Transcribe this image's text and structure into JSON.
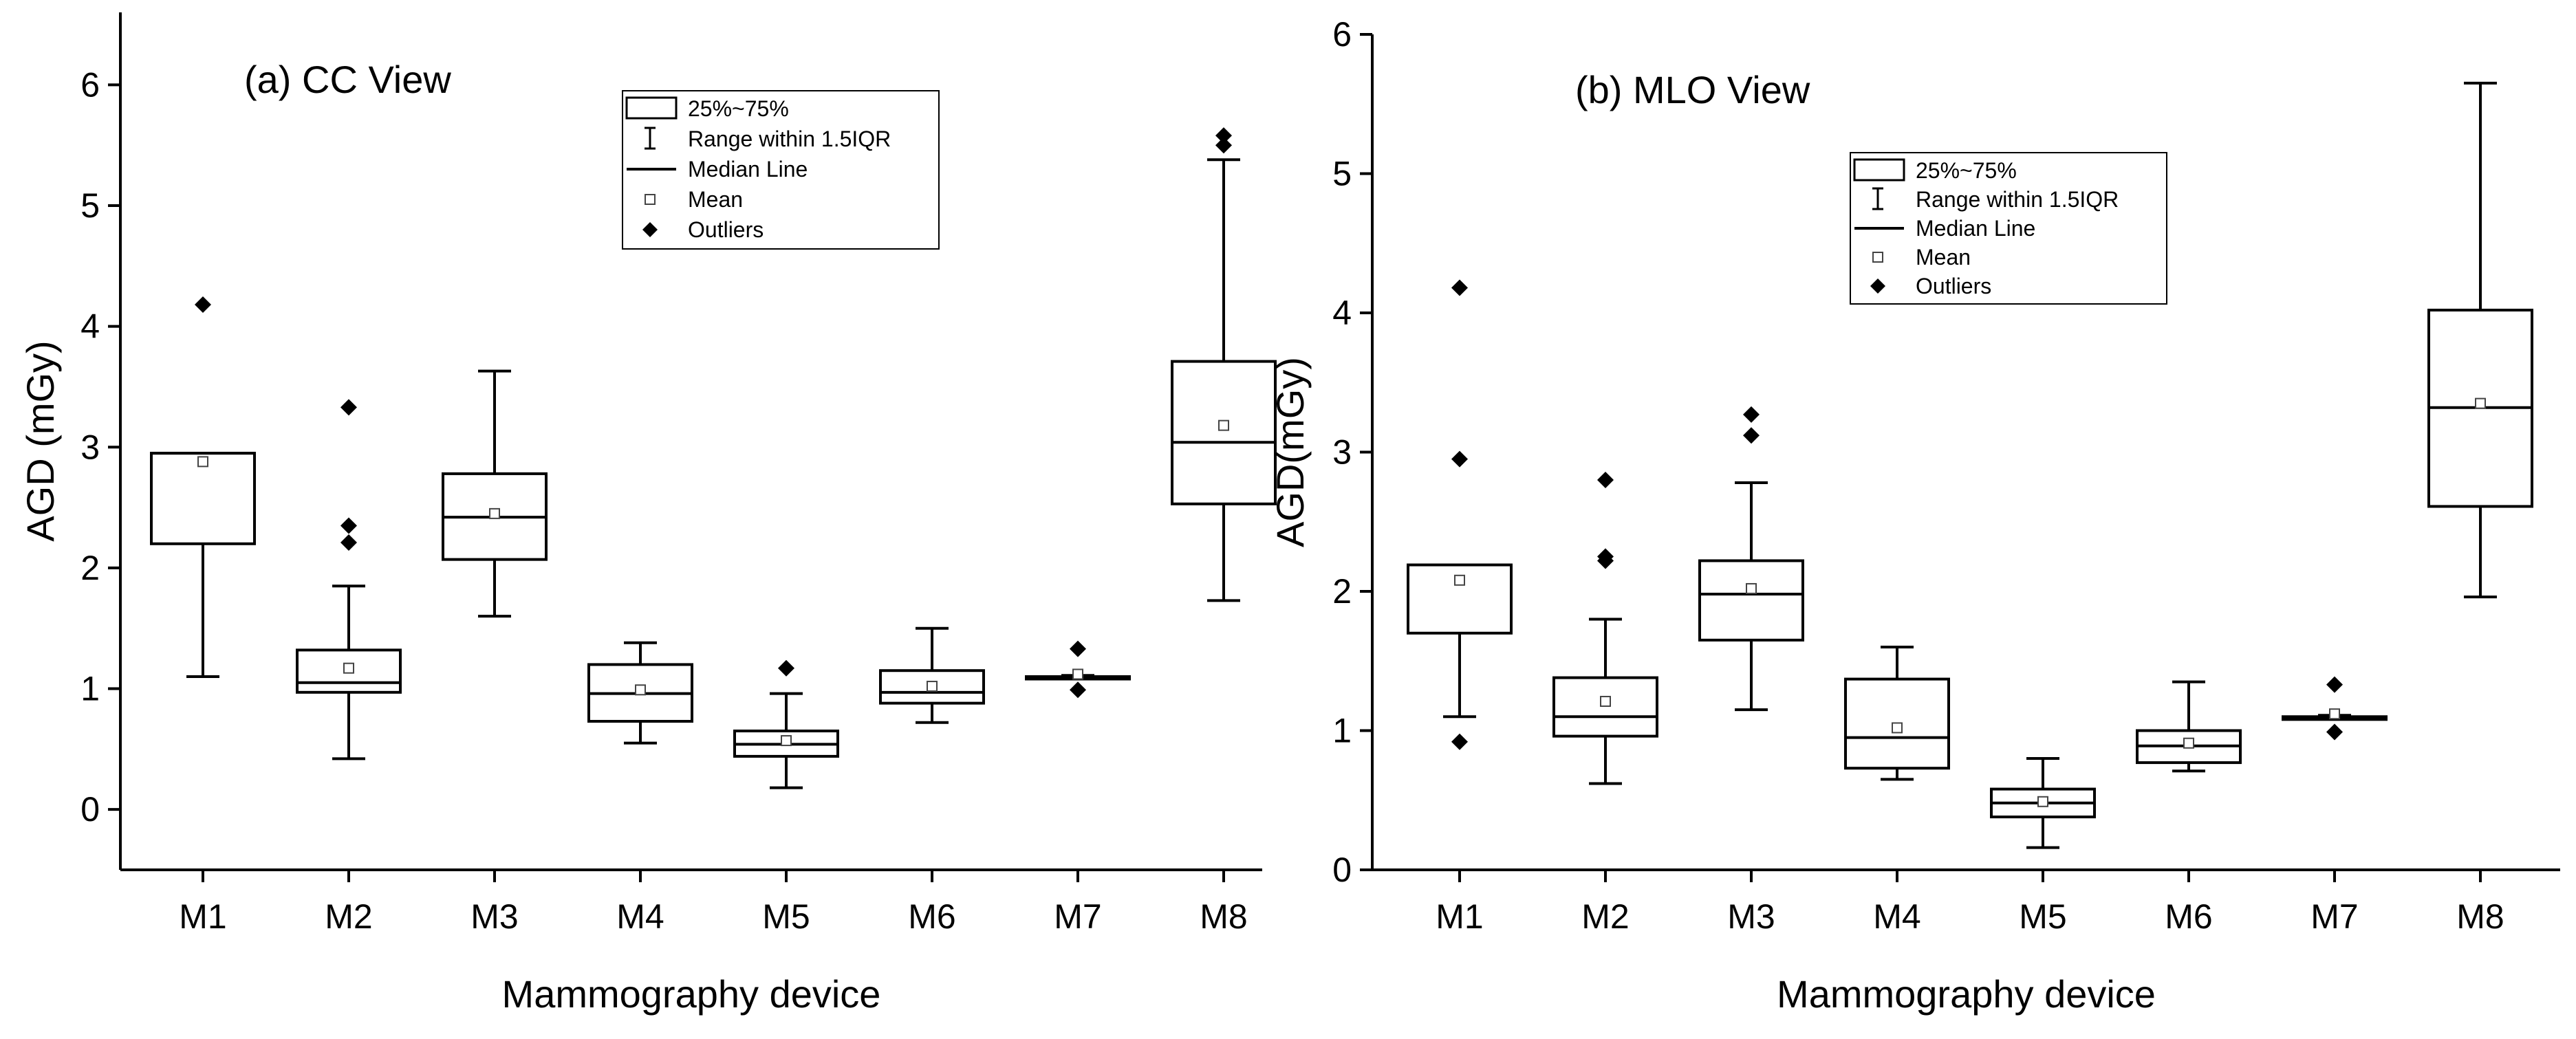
{
  "chart_data": [
    {
      "type": "box",
      "title": "(a) CC View",
      "xlabel": "Mammography device",
      "ylabel": "AGD (mGy)",
      "ylim": [
        -0.5,
        6.6
      ],
      "yticks": [
        0,
        1,
        2,
        3,
        4,
        5,
        6
      ],
      "categories": [
        "M1",
        "M2",
        "M3",
        "M4",
        "M5",
        "M6",
        "M7",
        "M8"
      ],
      "boxes": [
        {
          "name": "M1",
          "whisker_low": 1.1,
          "q1": 2.2,
          "median": 2.95,
          "q3": 2.95,
          "whisker_high": 2.95,
          "mean": 2.88,
          "outliers": [
            4.18
          ]
        },
        {
          "name": "M2",
          "whisker_low": 0.42,
          "q1": 0.97,
          "median": 1.05,
          "q3": 1.32,
          "whisker_high": 1.85,
          "mean": 1.17,
          "outliers": [
            2.21,
            2.35,
            3.33
          ]
        },
        {
          "name": "M3",
          "whisker_low": 1.6,
          "q1": 2.07,
          "median": 2.42,
          "q3": 2.78,
          "whisker_high": 3.63,
          "mean": 2.45,
          "outliers": []
        },
        {
          "name": "M4",
          "whisker_low": 0.55,
          "q1": 0.73,
          "median": 0.96,
          "q3": 1.2,
          "whisker_high": 1.38,
          "mean": 0.99,
          "outliers": []
        },
        {
          "name": "M5",
          "whisker_low": 0.18,
          "q1": 0.44,
          "median": 0.54,
          "q3": 0.65,
          "whisker_high": 0.96,
          "mean": 0.57,
          "outliers": [
            1.17
          ]
        },
        {
          "name": "M6",
          "whisker_low": 0.72,
          "q1": 0.88,
          "median": 0.97,
          "q3": 1.15,
          "whisker_high": 1.5,
          "mean": 1.02,
          "outliers": []
        },
        {
          "name": "M7",
          "whisker_low": 1.08,
          "q1": 1.08,
          "median": 1.09,
          "q3": 1.1,
          "whisker_high": 1.11,
          "mean": 1.12,
          "outliers": [
            0.99,
            1.33
          ]
        },
        {
          "name": "M8",
          "whisker_low": 1.73,
          "q1": 2.53,
          "median": 3.04,
          "q3": 3.71,
          "whisker_high": 5.38,
          "mean": 3.18,
          "outliers": [
            5.5,
            5.58
          ]
        }
      ],
      "legend": {
        "position": "top-center",
        "entries": [
          "25%~75%",
          "Range within 1.5IQR",
          "Median Line",
          "Mean",
          "Outliers"
        ]
      }
    },
    {
      "type": "box",
      "title": "(b) MLO View",
      "xlabel": "Mammography device",
      "ylabel": "AGD(mGy)",
      "ylim": [
        0,
        6
      ],
      "yticks": [
        0,
        1,
        2,
        3,
        4,
        5,
        6
      ],
      "categories": [
        "M1",
        "M2",
        "M3",
        "M4",
        "M5",
        "M6",
        "M7",
        "M8"
      ],
      "boxes": [
        {
          "name": "M1",
          "whisker_low": 1.1,
          "q1": 1.7,
          "median": 2.19,
          "q3": 2.19,
          "whisker_high": 2.19,
          "mean": 2.08,
          "outliers": [
            0.92,
            2.95,
            4.18
          ]
        },
        {
          "name": "M2",
          "whisker_low": 0.62,
          "q1": 0.96,
          "median": 1.1,
          "q3": 1.38,
          "whisker_high": 1.8,
          "mean": 1.21,
          "outliers": [
            2.22,
            2.25,
            2.8
          ]
        },
        {
          "name": "M3",
          "whisker_low": 1.15,
          "q1": 1.65,
          "median": 1.98,
          "q3": 2.22,
          "whisker_high": 2.78,
          "mean": 2.02,
          "outliers": [
            3.12,
            3.27
          ]
        },
        {
          "name": "M4",
          "whisker_low": 0.65,
          "q1": 0.73,
          "median": 0.95,
          "q3": 1.37,
          "whisker_high": 1.6,
          "mean": 1.02,
          "outliers": []
        },
        {
          "name": "M5",
          "whisker_low": 0.16,
          "q1": 0.38,
          "median": 0.48,
          "q3": 0.58,
          "whisker_high": 0.8,
          "mean": 0.49,
          "outliers": []
        },
        {
          "name": "M6",
          "whisker_low": 0.71,
          "q1": 0.77,
          "median": 0.89,
          "q3": 1.0,
          "whisker_high": 1.35,
          "mean": 0.91,
          "outliers": []
        },
        {
          "name": "M7",
          "whisker_low": 1.08,
          "q1": 1.08,
          "median": 1.09,
          "q3": 1.1,
          "whisker_high": 1.11,
          "mean": 1.12,
          "outliers": [
            0.99,
            1.33
          ]
        },
        {
          "name": "M8",
          "whisker_low": 1.96,
          "q1": 2.61,
          "median": 3.32,
          "q3": 4.02,
          "whisker_high": 5.65,
          "mean": 3.35,
          "outliers": []
        }
      ],
      "legend": {
        "position": "top-center",
        "entries": [
          "25%~75%",
          "Range within 1.5IQR",
          "Median Line",
          "Mean",
          "Outliers"
        ]
      }
    }
  ]
}
